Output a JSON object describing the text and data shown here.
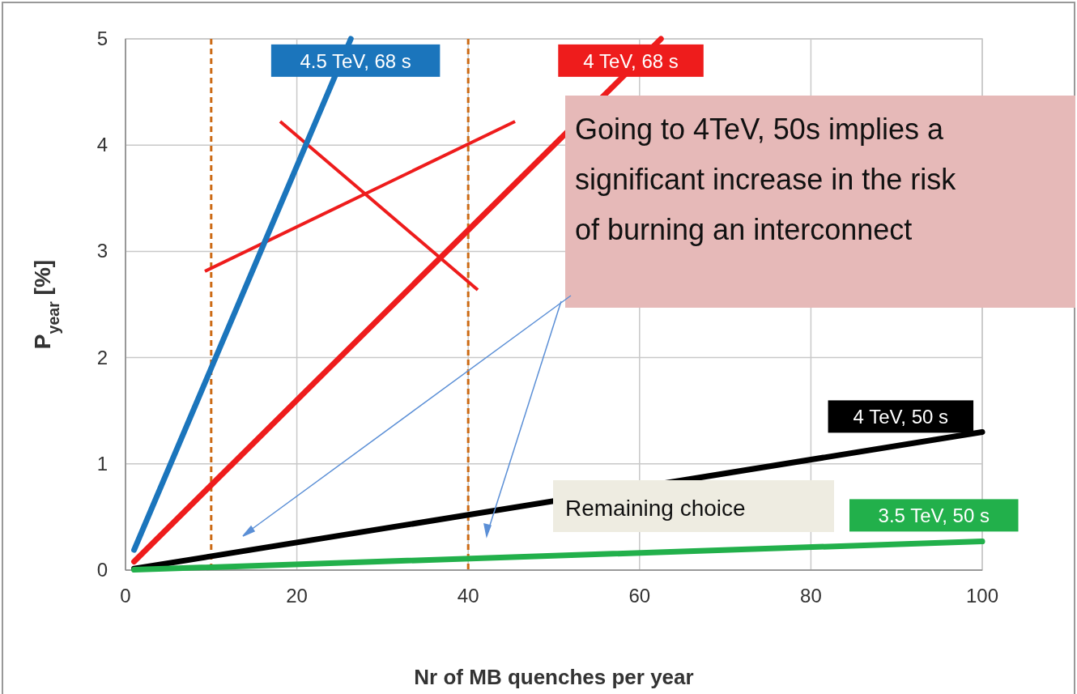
{
  "chart_data": {
    "type": "line",
    "xlabel": "Nr of MB quenches per year",
    "ylabel": "P$_{year}$ [%]",
    "xlim": [
      0,
      100
    ],
    "xticks": [
      0,
      20,
      40,
      60,
      80,
      100
    ],
    "ylim": [
      0,
      5
    ],
    "yticks": [
      0,
      1,
      2,
      3,
      4,
      5
    ],
    "grid": true,
    "line_style": "solid",
    "marker": "none",
    "series": [
      {
        "name": "4.5 TeV, 68 s",
        "color": "#1b75bc",
        "x": [
          1,
          26.3
        ],
        "values": [
          0.19,
          5
        ]
      },
      {
        "name": "4 TeV, 68 s",
        "color": "#ee1c1c",
        "x": [
          1,
          62.5
        ],
        "values": [
          0.08,
          5
        ]
      },
      {
        "name": "4 TeV, 50 s",
        "color": "#000000",
        "x": [
          1,
          100
        ],
        "values": [
          0.013,
          1.3
        ]
      },
      {
        "name": "3.5 TeV, 50 s",
        "color": "#22b04b",
        "x": [
          1,
          100
        ],
        "values": [
          0.003,
          0.27
        ]
      }
    ],
    "ref_lines": [
      {
        "axis": "x",
        "value": 10,
        "color": "#cc6a14",
        "line_style": "dashed"
      },
      {
        "axis": "x",
        "value": 40,
        "color": "#cc6a14",
        "line_style": "dashed"
      }
    ],
    "annotations": [
      "Going to 4TeV, 50s implies a significant increase in the risk of burning an interconnect",
      "Remaining choice"
    ]
  }
}
